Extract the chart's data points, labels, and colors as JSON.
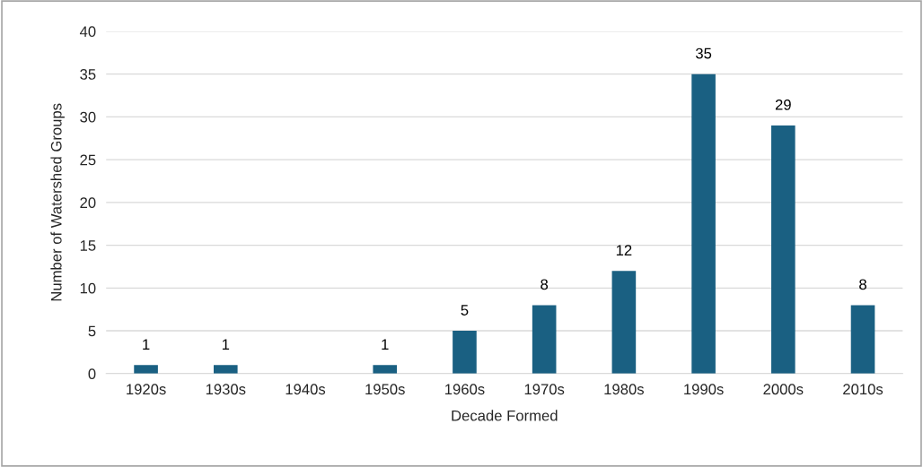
{
  "chart_data": {
    "type": "bar",
    "xlabel": "Decade Formed",
    "ylabel": "Number of Watershed Groups",
    "categories": [
      "1920s",
      "1930s",
      "1940s",
      "1950s",
      "1960s",
      "1970s",
      "1980s",
      "1990s",
      "2000s",
      "2010s"
    ],
    "values": [
      1,
      1,
      0,
      1,
      5,
      8,
      12,
      35,
      29,
      8
    ],
    "value_labels": [
      "1",
      "1",
      null,
      "1",
      "5",
      "8",
      "12",
      "35",
      "29",
      "8"
    ],
    "color": "#1a6082",
    "ylim": [
      0,
      40
    ],
    "yticks": [
      0,
      5,
      10,
      15,
      20,
      25,
      30,
      35,
      40
    ],
    "grid": "y",
    "legend": false
  }
}
